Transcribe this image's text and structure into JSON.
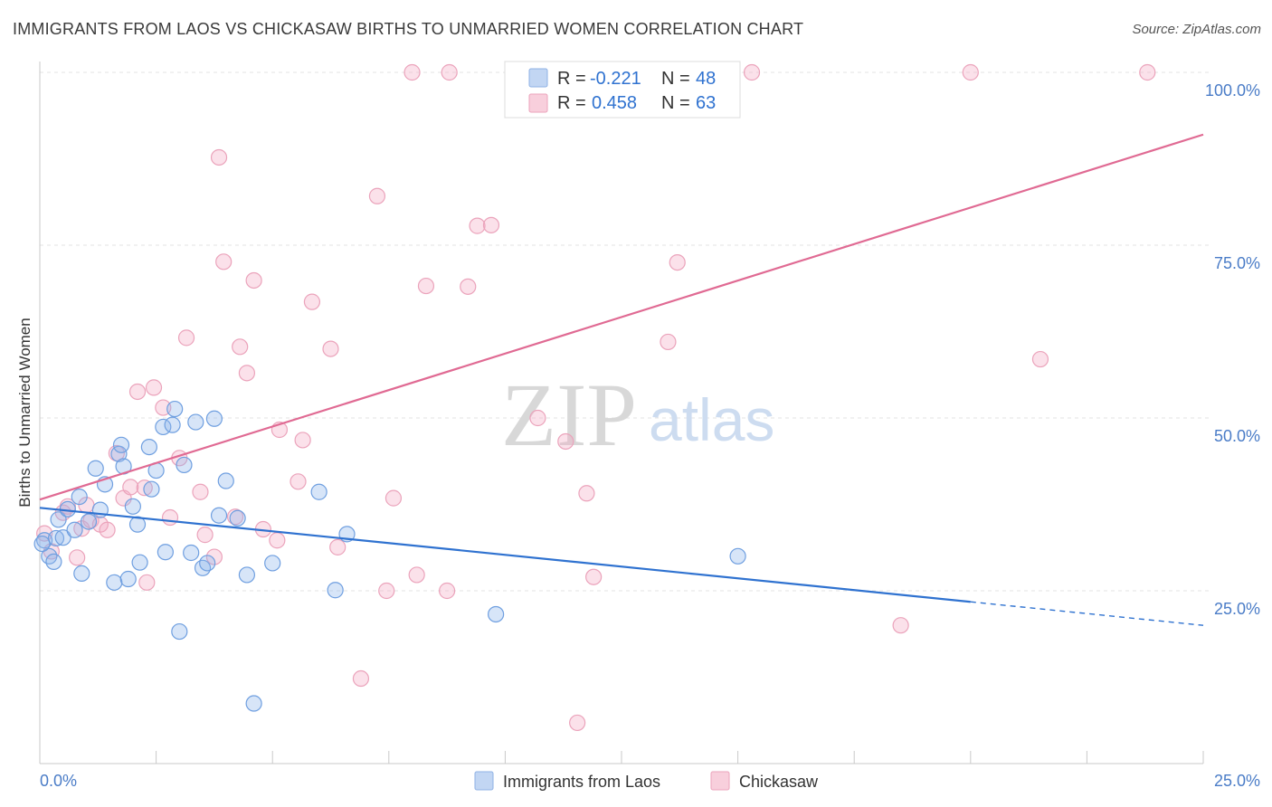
{
  "title": "IMMIGRANTS FROM LAOS VS CHICKASAW BIRTHS TO UNMARRIED WOMEN CORRELATION CHART",
  "source": "Source: ZipAtlas.com",
  "watermark": {
    "zip": "ZIP",
    "atlas": "atlas"
  },
  "colors": {
    "blue": "#6f9fe0",
    "pink": "#f0a0b8",
    "blue_line": "#2f72d0",
    "pink_line": "#e06a93",
    "tick": "#4a7cc7"
  },
  "legend": {
    "blue": {
      "r_label": "R =",
      "r_value": "-0.221",
      "n_label": "N =",
      "n_value": "48"
    },
    "pink": {
      "r_label": "R =",
      "r_value": "0.458",
      "n_label": "N =",
      "n_value": "63"
    }
  },
  "chart_data": {
    "type": "scatter",
    "title": "IMMIGRANTS FROM LAOS VS CHICKASAW BIRTHS TO UNMARRIED WOMEN CORRELATION CHART",
    "xlabel": "",
    "ylabel": "Births to Unmarried Women",
    "xlim": [
      0,
      25
    ],
    "ylim": [
      0,
      100
    ],
    "x_tick_labels": [
      "0.0%",
      "25.0%"
    ],
    "y_tick_labels": [
      "25.0%",
      "50.0%",
      "75.0%",
      "100.0%"
    ],
    "y_ticks": [
      25,
      50,
      75,
      100
    ],
    "grid": true,
    "legend_position": "top-center",
    "series": [
      {
        "name": "Immigrants from Laos",
        "color": "#6f9fe0",
        "r": -0.221,
        "n": 48,
        "trend": {
          "x0": 0,
          "y0": 37.0,
          "x1": 20.0,
          "y1": 23.4,
          "dashed_to_x": 25.0,
          "dashed_to_y": 20.0
        },
        "points": [
          [
            0.1,
            32.3
          ],
          [
            0.2,
            30.0
          ],
          [
            0.3,
            29.2
          ],
          [
            0.35,
            32.6
          ],
          [
            0.4,
            35.3
          ],
          [
            0.5,
            32.7
          ],
          [
            0.6,
            36.8
          ],
          [
            0.75,
            33.8
          ],
          [
            0.85,
            38.6
          ],
          [
            0.9,
            27.5
          ],
          [
            1.05,
            35.0
          ],
          [
            1.2,
            42.7
          ],
          [
            1.3,
            36.7
          ],
          [
            1.4,
            40.4
          ],
          [
            1.6,
            26.2
          ],
          [
            1.7,
            44.8
          ],
          [
            1.75,
            46.1
          ],
          [
            1.8,
            43.0
          ],
          [
            1.9,
            26.7
          ],
          [
            2.0,
            37.2
          ],
          [
            2.1,
            34.6
          ],
          [
            2.15,
            29.1
          ],
          [
            2.35,
            45.8
          ],
          [
            2.4,
            39.7
          ],
          [
            2.5,
            42.4
          ],
          [
            2.65,
            48.7
          ],
          [
            2.7,
            30.6
          ],
          [
            2.85,
            49.0
          ],
          [
            2.9,
            51.3
          ],
          [
            3.0,
            19.1
          ],
          [
            3.1,
            43.2
          ],
          [
            3.25,
            30.5
          ],
          [
            3.35,
            49.4
          ],
          [
            3.5,
            28.3
          ],
          [
            3.6,
            29.0
          ],
          [
            3.75,
            49.9
          ],
          [
            3.85,
            35.9
          ],
          [
            4.0,
            40.9
          ],
          [
            4.25,
            35.5
          ],
          [
            4.45,
            27.3
          ],
          [
            4.6,
            8.7
          ],
          [
            5.0,
            29.0
          ],
          [
            6.35,
            25.1
          ],
          [
            6.0,
            39.3
          ],
          [
            6.6,
            33.2
          ],
          [
            9.8,
            21.6
          ],
          [
            15.0,
            30.0
          ],
          [
            0.05,
            31.8
          ]
        ]
      },
      {
        "name": "Chickasaw",
        "color": "#f0a0b8",
        "r": 0.458,
        "n": 63,
        "trend": {
          "x0": 0,
          "y0": 38.2,
          "x1": 25.0,
          "y1": 91.0
        },
        "points": [
          [
            0.1,
            33.3
          ],
          [
            0.25,
            30.7
          ],
          [
            0.5,
            36.3
          ],
          [
            0.6,
            37.2
          ],
          [
            0.8,
            29.8
          ],
          [
            0.9,
            34.0
          ],
          [
            1.0,
            37.4
          ],
          [
            1.1,
            35.2
          ],
          [
            1.3,
            34.6
          ],
          [
            1.45,
            33.8
          ],
          [
            1.65,
            44.9
          ],
          [
            1.8,
            38.4
          ],
          [
            1.95,
            40.0
          ],
          [
            2.1,
            53.8
          ],
          [
            2.3,
            26.2
          ],
          [
            2.45,
            54.4
          ],
          [
            2.65,
            51.5
          ],
          [
            2.8,
            35.6
          ],
          [
            3.0,
            44.2
          ],
          [
            3.15,
            61.6
          ],
          [
            3.45,
            39.3
          ],
          [
            3.55,
            33.1
          ],
          [
            3.85,
            87.7
          ],
          [
            3.95,
            72.6
          ],
          [
            4.2,
            35.7
          ],
          [
            4.3,
            60.3
          ],
          [
            4.45,
            56.5
          ],
          [
            4.6,
            69.9
          ],
          [
            4.8,
            33.9
          ],
          [
            5.1,
            32.3
          ],
          [
            5.15,
            48.3
          ],
          [
            5.55,
            40.8
          ],
          [
            5.65,
            46.8
          ],
          [
            5.85,
            66.8
          ],
          [
            6.25,
            60.0
          ],
          [
            6.4,
            31.3
          ],
          [
            6.9,
            12.3
          ],
          [
            7.25,
            82.1
          ],
          [
            7.45,
            25.0
          ],
          [
            7.6,
            38.4
          ],
          [
            8.0,
            100.0
          ],
          [
            8.1,
            27.3
          ],
          [
            8.3,
            69.1
          ],
          [
            8.75,
            25.0
          ],
          [
            8.8,
            100.0
          ],
          [
            9.2,
            69.0
          ],
          [
            9.4,
            77.8
          ],
          [
            9.7,
            77.9
          ],
          [
            10.7,
            50.0
          ],
          [
            11.3,
            46.6
          ],
          [
            11.55,
            5.9
          ],
          [
            11.75,
            39.1
          ],
          [
            11.9,
            27.0
          ],
          [
            13.5,
            61.0
          ],
          [
            13.4,
            100.0
          ],
          [
            13.7,
            72.5
          ],
          [
            15.3,
            100.0
          ],
          [
            18.5,
            20.0
          ],
          [
            20.0,
            100.0
          ],
          [
            21.5,
            58.5
          ],
          [
            23.8,
            100.0
          ],
          [
            2.25,
            39.9
          ],
          [
            3.75,
            29.9
          ]
        ]
      }
    ]
  },
  "bottom_legend": {
    "blue_label": "Immigrants from Laos",
    "pink_label": "Chickasaw"
  }
}
